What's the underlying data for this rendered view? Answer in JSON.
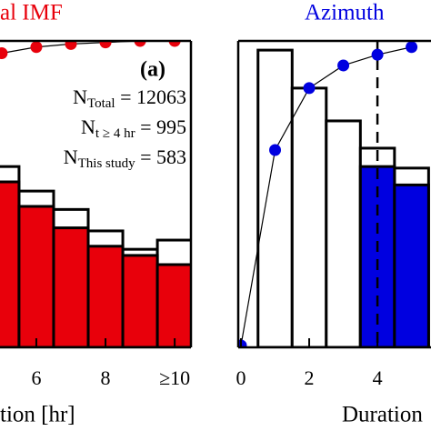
{
  "chart_data": [
    {
      "type": "bar",
      "title": "al IMF",
      "title_color": "#e8000b",
      "x_label": "tion [hr]",
      "xlim": [
        4.95,
        10.47
      ],
      "ylim": [
        0,
        100
      ],
      "xticks": [
        6,
        8,
        {
          "value": 10,
          "label": "≥10"
        }
      ],
      "x": [
        5,
        6,
        7,
        8,
        9,
        10
      ],
      "series": [
        {
          "color": "#ffffff",
          "values": [
            59,
            51,
            45,
            38,
            32,
            35
          ]
        },
        {
          "color": "#e8000b",
          "values": [
            54,
            46,
            39,
            33,
            30,
            27
          ]
        }
      ],
      "cumulative": {
        "color": "#e8000b",
        "x": [
          5,
          6,
          7,
          8,
          9,
          10
        ],
        "values": [
          96,
          98,
          99,
          99.5,
          100,
          100
        ]
      },
      "annotations": [
        {
          "text": "(a)"
        },
        {
          "text": "N",
          "sub": "Total",
          "rest": " = 12063"
        },
        {
          "text": "N",
          "sub": "t ≥ 4 hr",
          "rest": " = 995"
        },
        {
          "text": "N",
          "sub": "This study",
          "rest": " = 583"
        }
      ]
    },
    {
      "type": "bar",
      "title": "Azimuth",
      "title_color": "#0000e0",
      "x_label": "Duration",
      "xlim": [
        -0.08,
        5.57
      ],
      "ylim": [
        0,
        100
      ],
      "xticks": [
        0,
        2,
        4
      ],
      "x": [
        1,
        2,
        3,
        4,
        5
      ],
      "series": [
        {
          "color": "#ffffff",
          "values": [
            97,
            84.6,
            73.9,
            65,
            58.5
          ]
        },
        {
          "color": "#0000e0",
          "values": [
            0,
            0,
            0,
            59,
            53
          ]
        }
      ],
      "cumulative": {
        "color": "#0000e0",
        "x": [
          0,
          1,
          2,
          3,
          4,
          5
        ],
        "values": [
          0.6,
          64.4,
          84.6,
          92,
          95.5,
          98
        ]
      },
      "vline": 4
    }
  ]
}
